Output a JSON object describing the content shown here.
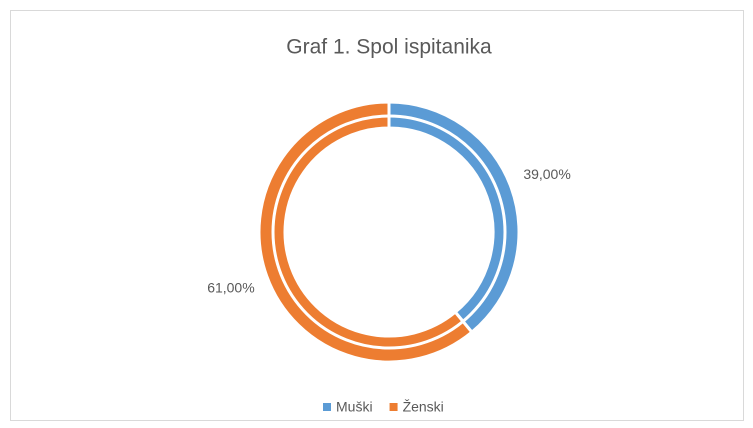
{
  "chart_data": {
    "type": "doughnut",
    "title": "Graf 1. Spol ispitanika",
    "categories": [
      "Muški",
      "Ženski"
    ],
    "values": [
      39,
      61
    ],
    "value_labels": [
      "39,00%",
      "61,00%"
    ],
    "colors": [
      "#5b9bd5",
      "#ed7d31"
    ],
    "legend": "bottom"
  }
}
